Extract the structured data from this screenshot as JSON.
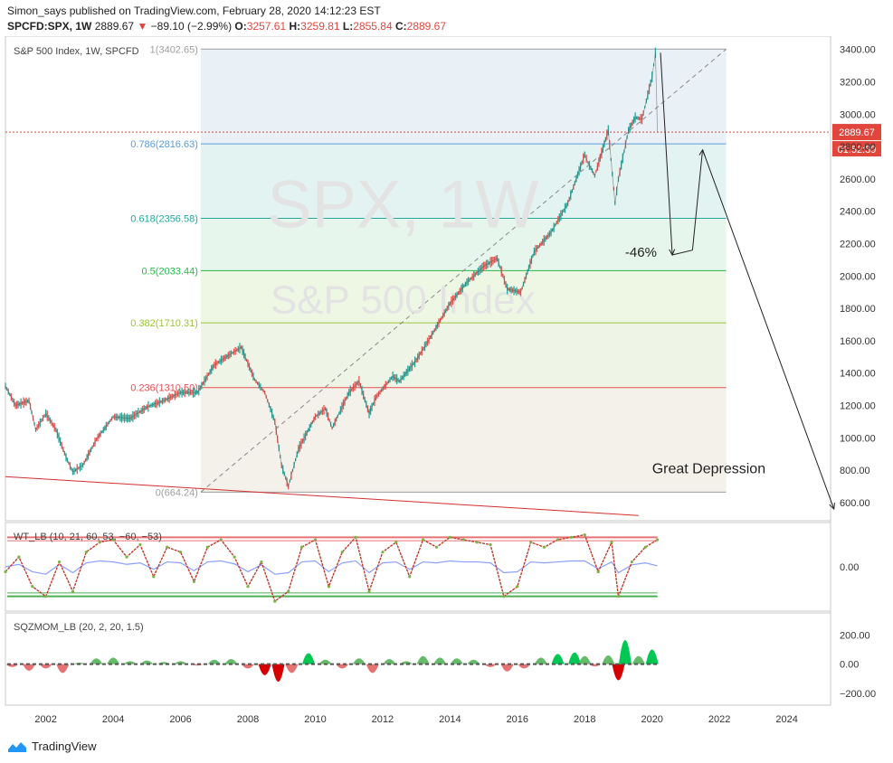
{
  "header": {
    "published": "Simon_says published on TradingView.com, February 28, 2020 14:12:23 EST",
    "symbol": "SPCFD:SPX, 1W",
    "last": "2889.67",
    "change": "−89.10 (−2.99%)",
    "open_label": "O:",
    "open": "3257.61",
    "high_label": "H:",
    "high": "3259.81",
    "low_label": "L:",
    "low": "2855.84",
    "close_label": "C:",
    "close": "2889.67"
  },
  "footer": {
    "brand": "TradingView"
  },
  "colors": {
    "up": "#26a69a",
    "down": "#ef5350",
    "price_tag": "#e0463c",
    "fib_1": "#9e9e9e",
    "fib_786": "#5d9bd6",
    "fib_618": "#26a69a",
    "fib_5": "#27b84a",
    "fib_382": "#9bc33b",
    "fib_236": "#e25050",
    "fib_0": "#9e9e9e"
  },
  "chart_data": [
    {
      "type": "line",
      "title": "S&P 500 Index, 1W, SPCFD",
      "watermark_symbol": "SPX, 1W",
      "watermark_name": "S&P 500 Index",
      "x_ticks": [
        "2002",
        "2004",
        "2006",
        "2008",
        "2010",
        "2012",
        "2014",
        "2016",
        "2018",
        "2020",
        "2022",
        "2024"
      ],
      "y_ticks": [
        "600.00",
        "800.00",
        "1000.00",
        "1200.00",
        "1400.00",
        "1600.00",
        "1800.00",
        "2000.00",
        "2200.00",
        "2400.00",
        "2600.00",
        "2800.00",
        "3000.00",
        "3200.00",
        "3400.00"
      ],
      "xlim": [
        2000.8,
        2025.3
      ],
      "ylim": [
        510,
        3460
      ],
      "price_label": "2889.67",
      "countdown_label": "01:52:39",
      "series": [
        {
          "x": [
            2000.8,
            2001.1,
            2001.5,
            2001.7,
            2002.0,
            2002.3,
            2002.6,
            2002.8,
            2003.1,
            2003.5,
            2004.0,
            2004.5,
            2005.0,
            2005.5,
            2006.0,
            2006.5,
            2007.0,
            2007.5,
            2007.8,
            2008.2,
            2008.5,
            2008.8,
            2009.0,
            2009.2,
            2009.5,
            2010.0,
            2010.3,
            2010.5,
            2011.0,
            2011.3,
            2011.6,
            2011.8,
            2012.3,
            2012.5,
            2013.0,
            2013.5,
            2014.0,
            2014.5,
            2015.0,
            2015.4,
            2015.7,
            2016.1,
            2016.5,
            2017.0,
            2017.5,
            2018.0,
            2018.1,
            2018.3,
            2018.7,
            2018.9,
            2019.0,
            2019.3,
            2019.5,
            2019.7,
            2020.0,
            2020.1,
            2020.16
          ],
          "y": [
            1320,
            1200,
            1230,
            1050,
            1150,
            1050,
            880,
            790,
            830,
            990,
            1130,
            1120,
            1190,
            1230,
            1280,
            1280,
            1450,
            1520,
            1560,
            1360,
            1280,
            1100,
            830,
            700,
            930,
            1130,
            1180,
            1060,
            1280,
            1350,
            1150,
            1250,
            1380,
            1350,
            1480,
            1650,
            1830,
            1960,
            2060,
            2110,
            1920,
            1900,
            2150,
            2270,
            2450,
            2750,
            2700,
            2620,
            2900,
            2450,
            2600,
            2900,
            2980,
            2970,
            3230,
            3380,
            2890
          ]
        }
      ],
      "fib_levels": [
        {
          "label": "1(3402.65)",
          "value": 3402.65
        },
        {
          "label": "0.786(2816.63)",
          "value": 2816.63
        },
        {
          "label": "0.618(2356.58)",
          "value": 2356.58
        },
        {
          "label": "0.5(2033.44)",
          "value": 2033.44
        },
        {
          "label": "0.382(1710.31)",
          "value": 1710.31
        },
        {
          "label": "0.236(1310.50)",
          "value": 1310.5
        },
        {
          "label": "0(664.24)",
          "value": 664.24
        }
      ],
      "annotations": [
        "-46%",
        "Great Depression"
      ],
      "projection": {
        "x": [
          2020.25,
          2020.6,
          2021.2,
          2021.5,
          2025.4
        ],
        "y": [
          3380,
          2130,
          2160,
          2780,
          560
        ]
      }
    },
    {
      "type": "line",
      "title": "WT_LB (10, 21, 60, 53, −60, −53)",
      "y_ticks": [
        "0.00"
      ],
      "ylim": [
        -90,
        90
      ],
      "levels": [
        60,
        53,
        -53,
        -60
      ],
      "x": [
        2000.8,
        2001.2,
        2001.6,
        2002.0,
        2002.4,
        2002.8,
        2003.2,
        2003.6,
        2004.0,
        2004.4,
        2004.8,
        2005.2,
        2005.6,
        2006.0,
        2006.4,
        2006.8,
        2007.2,
        2007.6,
        2008.0,
        2008.4,
        2008.8,
        2009.2,
        2009.6,
        2010.0,
        2010.4,
        2010.8,
        2011.2,
        2011.6,
        2012.0,
        2012.4,
        2012.8,
        2013.2,
        2013.6,
        2014.0,
        2014.4,
        2014.8,
        2015.2,
        2015.6,
        2016.0,
        2016.4,
        2016.8,
        2017.2,
        2017.6,
        2018.0,
        2018.4,
        2018.8,
        2019.0,
        2019.4,
        2019.8,
        2020.16
      ],
      "wt1": [
        -10,
        20,
        -40,
        -60,
        10,
        -50,
        30,
        50,
        55,
        20,
        45,
        -20,
        40,
        30,
        -30,
        40,
        55,
        20,
        -40,
        10,
        -70,
        -50,
        40,
        55,
        -40,
        30,
        60,
        -50,
        30,
        50,
        -20,
        55,
        40,
        60,
        55,
        50,
        45,
        -60,
        -40,
        50,
        40,
        55,
        60,
        65,
        -10,
        50,
        -60,
        10,
        40,
        55
      ],
      "wt2": [
        0,
        5,
        -10,
        -15,
        5,
        -12,
        8,
        12,
        10,
        5,
        8,
        -5,
        10,
        8,
        -8,
        10,
        12,
        6,
        -10,
        4,
        -15,
        -12,
        10,
        12,
        -10,
        8,
        12,
        -12,
        8,
        10,
        -5,
        10,
        8,
        12,
        10,
        10,
        8,
        -12,
        -10,
        10,
        8,
        10,
        12,
        12,
        -4,
        10,
        -12,
        4,
        8,
        2
      ]
    },
    {
      "type": "bar",
      "title": "SQZMOM_LB (20, 2, 20, 1.5)",
      "y_ticks": [
        "200.00",
        "0.00",
        "−200.00"
      ],
      "ylim": [
        -280,
        350
      ],
      "x": [
        2001.0,
        2001.5,
        2002.0,
        2002.5,
        2003.0,
        2003.5,
        2004.0,
        2004.5,
        2005.0,
        2005.5,
        2006.0,
        2006.5,
        2007.0,
        2007.5,
        2008.0,
        2008.5,
        2008.9,
        2009.3,
        2009.8,
        2010.3,
        2010.8,
        2011.3,
        2011.7,
        2012.2,
        2012.7,
        2013.2,
        2013.7,
        2014.2,
        2014.7,
        2015.2,
        2015.7,
        2016.2,
        2016.7,
        2017.2,
        2017.7,
        2018.0,
        2018.3,
        2018.7,
        2019.0,
        2019.2,
        2019.6,
        2020.0
      ],
      "values": [
        -40,
        -90,
        -60,
        -120,
        20,
        80,
        90,
        40,
        50,
        30,
        40,
        -20,
        60,
        70,
        -60,
        -150,
        -240,
        -120,
        150,
        60,
        -60,
        80,
        -120,
        70,
        40,
        110,
        90,
        80,
        60,
        -40,
        -100,
        -60,
        90,
        140,
        160,
        110,
        -30,
        120,
        -220,
        330,
        110,
        200
      ]
    }
  ]
}
